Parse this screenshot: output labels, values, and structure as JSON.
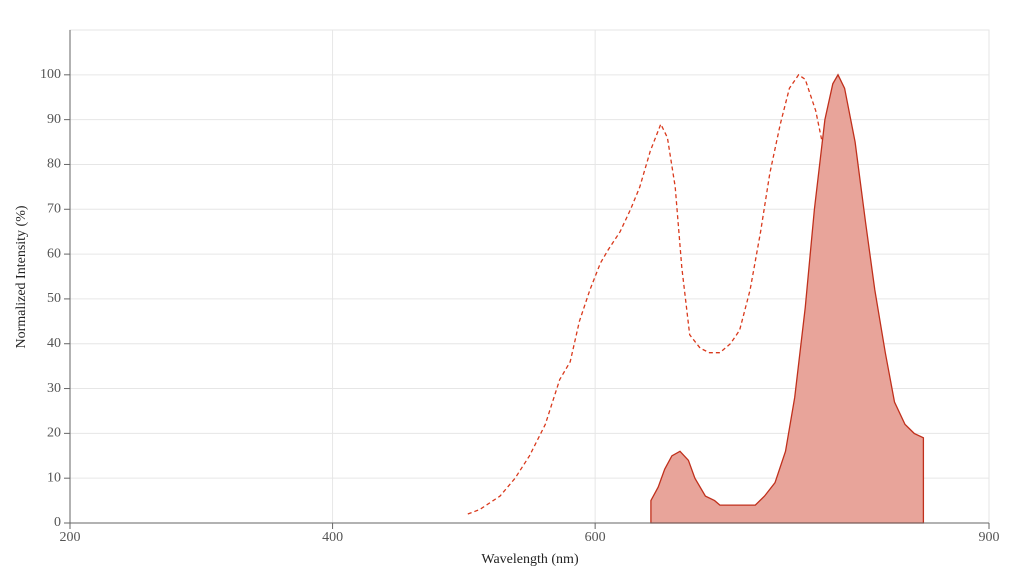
{
  "chart_data": {
    "type": "line",
    "x_label": "Wavelength (nm)",
    "y_label": "Normalized Intensity (%)",
    "xlim": [
      200,
      900
    ],
    "xticks": [
      200,
      400,
      600,
      900
    ],
    "ylim": [
      0,
      110
    ],
    "yticks": [
      0,
      10,
      20,
      30,
      40,
      50,
      60,
      70,
      80,
      90,
      100
    ],
    "grid": true,
    "series": [
      {
        "color": "#d9391c",
        "dashed": true,
        "filled": false,
        "x": [
          503,
          512,
          527.5,
          539,
          550,
          562,
          573,
          581,
          588,
          596,
          604,
          610,
          619,
          627,
          634,
          642,
          650,
          655,
          661,
          666,
          672,
          680,
          687,
          695,
          703,
          710,
          718,
          726,
          733,
          741,
          748,
          755,
          760,
          768,
          775,
          783,
          790,
          798,
          806,
          813,
          819,
          820
        ],
        "values": [
          2,
          3,
          6,
          10,
          15,
          22,
          32,
          36,
          45,
          52,
          58,
          61,
          65,
          70,
          75,
          83,
          89,
          86,
          75,
          57,
          42,
          39,
          38,
          38,
          40,
          43,
          52,
          65,
          78,
          89,
          97,
          100,
          99,
          92,
          82,
          68,
          50,
          33,
          18,
          9,
          7,
          0
        ]
      },
      {
        "color": "#c0301c",
        "fill": "#e8a49a",
        "dashed": false,
        "filled": true,
        "x": [
          642.5,
          648,
          653,
          658.5,
          664.6,
          671,
          676,
          684,
          691,
          695,
          722,
          729,
          737,
          745,
          752,
          760,
          767,
          775,
          781,
          785,
          790,
          798,
          806,
          813,
          821,
          828,
          836,
          843,
          850
        ],
        "values": [
          5,
          8,
          12,
          15,
          16,
          14,
          10,
          6,
          5,
          4,
          4,
          6,
          9,
          16,
          28,
          48,
          70,
          90,
          98,
          100,
          97,
          85,
          67,
          52,
          38,
          27,
          22,
          20,
          19
        ]
      }
    ]
  }
}
